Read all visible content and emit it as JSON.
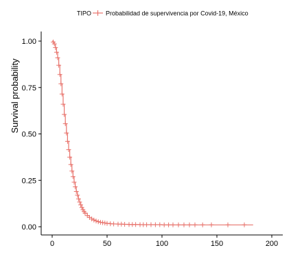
{
  "chart_data": {
    "type": "line",
    "title": "",
    "xlabel": "",
    "ylabel": "Survival probability",
    "xlim": [
      0,
      200
    ],
    "ylim": [
      0,
      1
    ],
    "x_ticks": [
      "0",
      "50",
      "100",
      "150",
      "200"
    ],
    "y_ticks": [
      "0.00",
      "0.25",
      "0.50",
      "0.75",
      "1.00"
    ],
    "grid": false,
    "legend_position": "top",
    "legend": {
      "title": "TIPO",
      "entries": [
        "Probabilidad de supervivencia por Covid-19, México"
      ]
    },
    "colors": {
      "series": "#e8736c",
      "axis": "#000000"
    },
    "series": [
      {
        "name": "Probabilidad de supervivencia por Covid-19, México",
        "x": [
          0,
          1,
          2,
          3,
          4,
          5,
          6,
          7,
          8,
          9,
          10,
          11,
          12,
          13,
          14,
          15,
          16,
          17,
          18,
          19,
          20,
          21,
          22,
          23,
          24,
          25,
          26,
          27,
          28,
          29,
          30,
          32,
          34,
          36,
          38,
          40,
          42,
          44,
          46,
          48,
          50,
          53,
          56,
          60,
          65,
          70,
          75,
          80,
          90,
          100,
          110,
          120,
          130,
          140,
          150,
          160,
          170,
          183
        ],
        "y": [
          1.0,
          0.995,
          0.985,
          0.965,
          0.94,
          0.91,
          0.87,
          0.82,
          0.77,
          0.715,
          0.66,
          0.605,
          0.555,
          0.505,
          0.46,
          0.415,
          0.375,
          0.335,
          0.3,
          0.27,
          0.24,
          0.215,
          0.19,
          0.17,
          0.15,
          0.133,
          0.118,
          0.104,
          0.092,
          0.082,
          0.073,
          0.06,
          0.05,
          0.042,
          0.036,
          0.031,
          0.027,
          0.024,
          0.022,
          0.02,
          0.018,
          0.016,
          0.015,
          0.014,
          0.013,
          0.012,
          0.012,
          0.011,
          0.011,
          0.01,
          0.01,
          0.01,
          0.01,
          0.01,
          0.01,
          0.01,
          0.01,
          0.01
        ]
      }
    ],
    "censor_x": [
      1,
      2,
      3,
      4,
      5,
      6,
      7,
      8,
      9,
      10,
      11,
      12,
      13,
      14,
      15,
      16,
      17,
      18,
      19,
      20,
      21,
      22,
      23,
      24,
      25,
      26,
      27,
      28,
      29,
      30,
      32,
      34,
      36,
      38,
      40,
      42,
      44,
      46,
      48,
      50,
      53,
      56,
      60,
      63,
      66,
      70,
      73,
      76,
      80,
      83,
      86,
      90,
      94,
      98,
      102,
      106,
      110,
      115,
      120,
      125,
      130,
      137,
      145,
      160,
      175
    ]
  }
}
